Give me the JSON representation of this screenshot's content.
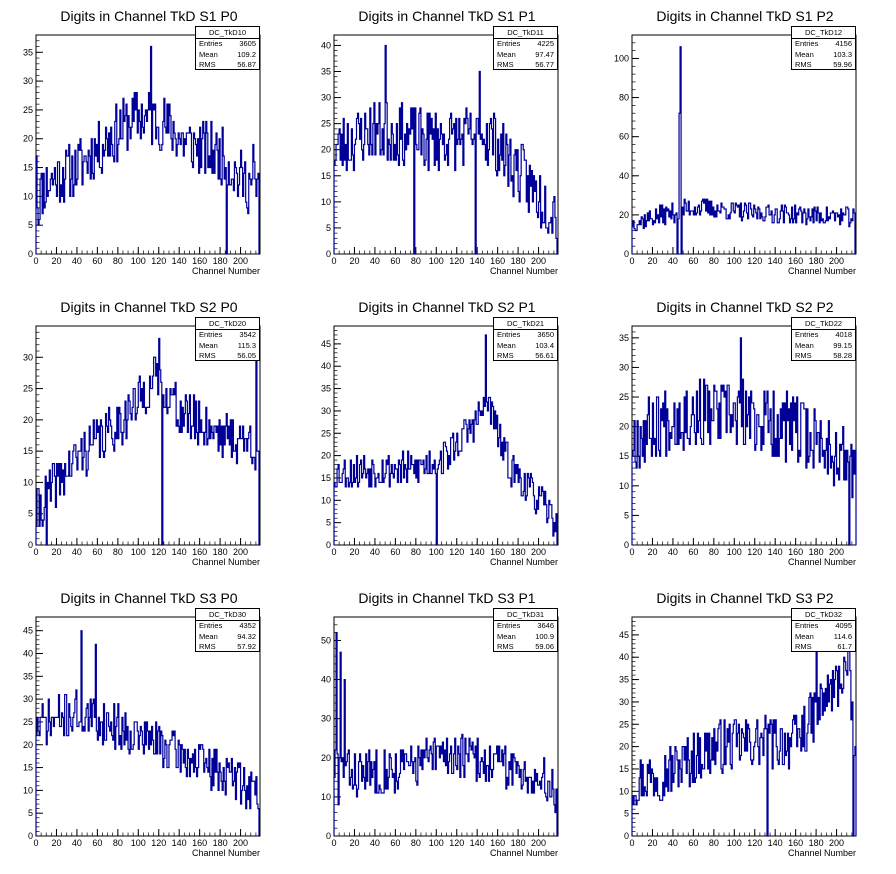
{
  "chart_data": [
    {
      "type": "bar",
      "title": "Digits in Channel TkD S1 P0",
      "stats_name": "DC_TkD10",
      "stats": {
        "entries_label": "Entries",
        "entries": "3605",
        "mean_label": "Mean",
        "mean": "109.2",
        "rms_label": "RMS",
        "rms": "56.87"
      },
      "xlabel": "Channel Number",
      "xlim": [
        0,
        219
      ],
      "ylim": [
        0,
        38
      ],
      "yticks": [
        0,
        5,
        10,
        15,
        20,
        25,
        30,
        35
      ],
      "xticks": [
        0,
        20,
        40,
        60,
        80,
        100,
        120,
        140,
        160,
        180,
        200
      ],
      "color": "#000099",
      "seed": 11,
      "profile": [
        [
          0,
          10
        ],
        [
          15,
          13
        ],
        [
          40,
          15
        ],
        [
          70,
          20
        ],
        [
          100,
          24
        ],
        [
          120,
          23
        ],
        [
          150,
          19
        ],
        [
          180,
          17
        ],
        [
          200,
          13
        ],
        [
          218,
          11
        ]
      ],
      "noise": 5,
      "spikes": [
        [
          0,
          17
        ],
        [
          2,
          5
        ],
        [
          112,
          36
        ],
        [
          186,
          0
        ],
        [
          212,
          19
        ],
        [
          218,
          0
        ]
      ]
    },
    {
      "type": "bar",
      "title": "Digits in Channel TkD S1 P1",
      "stats_name": "DC_TkD11",
      "stats": {
        "entries_label": "Entries",
        "entries": "4225",
        "mean_label": "Mean",
        "mean": "97.47",
        "rms_label": "RMS",
        "rms": "56.77"
      },
      "xlabel": "Channel Number",
      "xlim": [
        0,
        219
      ],
      "ylim": [
        0,
        42
      ],
      "yticks": [
        0,
        5,
        10,
        15,
        20,
        25,
        30,
        35,
        40
      ],
      "xticks": [
        0,
        20,
        40,
        60,
        80,
        100,
        120,
        140,
        160,
        180,
        200
      ],
      "color": "#000099",
      "seed": 23,
      "profile": [
        [
          0,
          20
        ],
        [
          40,
          24
        ],
        [
          80,
          22
        ],
        [
          120,
          22
        ],
        [
          150,
          23
        ],
        [
          180,
          16
        ],
        [
          200,
          11
        ],
        [
          218,
          8
        ]
      ],
      "noise": 6,
      "spikes": [
        [
          50,
          40
        ],
        [
          78,
          0
        ],
        [
          138,
          0
        ],
        [
          142,
          35
        ],
        [
          218,
          0
        ]
      ]
    },
    {
      "type": "bar",
      "title": "Digits in Channel TkD S1 P2",
      "stats_name": "DC_TkD12",
      "stats": {
        "entries_label": "Entries",
        "entries": "4156",
        "mean_label": "Mean",
        "mean": "103.3",
        "rms_label": "RMS",
        "rms": "59.96"
      },
      "xlabel": "Channel Number",
      "xlim": [
        0,
        219
      ],
      "ylim": [
        0,
        112
      ],
      "yticks": [
        0,
        20,
        40,
        60,
        80,
        100
      ],
      "xticks": [
        0,
        20,
        40,
        60,
        80,
        100,
        120,
        140,
        160,
        180,
        200
      ],
      "color": "#000099",
      "seed": 37,
      "profile": [
        [
          0,
          16
        ],
        [
          30,
          20
        ],
        [
          60,
          24
        ],
        [
          120,
          21
        ],
        [
          218,
          19
        ]
      ],
      "noise": 5,
      "spikes": [
        [
          44,
          0
        ],
        [
          46,
          72
        ],
        [
          47,
          106
        ],
        [
          48,
          0
        ],
        [
          218,
          0
        ]
      ]
    },
    {
      "type": "bar",
      "title": "Digits in Channel TkD S2 P0",
      "stats_name": "DC_TkD20",
      "stats": {
        "entries_label": "Entries",
        "entries": "3542",
        "mean_label": "Mean",
        "mean": "115.3",
        "rms_label": "RMS",
        "rms": "56.05"
      },
      "xlabel": "Channel Number",
      "xlim": [
        0,
        219
      ],
      "ylim": [
        0,
        35
      ],
      "yticks": [
        0,
        5,
        10,
        15,
        20,
        25,
        30
      ],
      "xticks": [
        0,
        20,
        40,
        60,
        80,
        100,
        120,
        140,
        160,
        180,
        200
      ],
      "color": "#000099",
      "seed": 41,
      "profile": [
        [
          0,
          5
        ],
        [
          20,
          10
        ],
        [
          40,
          14
        ],
        [
          70,
          18
        ],
        [
          100,
          23
        ],
        [
          120,
          27
        ],
        [
          140,
          21
        ],
        [
          180,
          18
        ],
        [
          210,
          16
        ],
        [
          218,
          15
        ]
      ],
      "noise": 4,
      "spikes": [
        [
          10,
          0
        ],
        [
          120,
          33
        ],
        [
          123,
          0
        ],
        [
          215,
          30
        ],
        [
          218,
          0
        ]
      ]
    },
    {
      "type": "bar",
      "title": "Digits in Channel TkD S2 P1",
      "stats_name": "DC_TkD21",
      "stats": {
        "entries_label": "Entries",
        "entries": "3650",
        "mean_label": "Mean",
        "mean": "103.4",
        "rms_label": "RMS",
        "rms": "56.61"
      },
      "xlabel": "Channel Number",
      "xlim": [
        0,
        219
      ],
      "ylim": [
        0,
        49
      ],
      "yticks": [
        0,
        5,
        10,
        15,
        20,
        25,
        30,
        35,
        40,
        45
      ],
      "xticks": [
        0,
        20,
        40,
        60,
        80,
        100,
        120,
        140,
        160,
        180,
        200
      ],
      "color": "#000099",
      "seed": 53,
      "profile": [
        [
          0,
          16
        ],
        [
          40,
          17
        ],
        [
          80,
          17
        ],
        [
          110,
          20
        ],
        [
          140,
          28
        ],
        [
          150,
          32
        ],
        [
          170,
          18
        ],
        [
          200,
          10
        ],
        [
          218,
          5
        ]
      ],
      "noise": 4,
      "spikes": [
        [
          100,
          0
        ],
        [
          148,
          47
        ],
        [
          218,
          0
        ]
      ]
    },
    {
      "type": "bar",
      "title": "Digits in Channel TkD S2 P2",
      "stats_name": "DC_TkD22",
      "stats": {
        "entries_label": "Entries",
        "entries": "4018",
        "mean_label": "Mean",
        "mean": "99.15",
        "rms_label": "RMS",
        "rms": "58.28"
      },
      "xlabel": "Channel Number",
      "xlim": [
        0,
        219
      ],
      "ylim": [
        0,
        37
      ],
      "yticks": [
        0,
        5,
        10,
        15,
        20,
        25,
        30,
        35
      ],
      "xticks": [
        0,
        20,
        40,
        60,
        80,
        100,
        120,
        140,
        160,
        180,
        200
      ],
      "color": "#000099",
      "seed": 67,
      "profile": [
        [
          0,
          18
        ],
        [
          40,
          22
        ],
        [
          100,
          22
        ],
        [
          150,
          20
        ],
        [
          190,
          17
        ],
        [
          218,
          13
        ]
      ],
      "noise": 6,
      "spikes": [
        [
          106,
          35
        ],
        [
          212,
          0
        ]
      ]
    },
    {
      "type": "bar",
      "title": "Digits in Channel TkD S3 P0",
      "stats_name": "DC_TkD30",
      "stats": {
        "entries_label": "Entries",
        "entries": "4352",
        "mean_label": "Mean",
        "mean": "94.32",
        "rms_label": "RMS",
        "rms": "57.92"
      },
      "xlabel": "Channel Number",
      "xlim": [
        0,
        219
      ],
      "ylim": [
        0,
        48
      ],
      "yticks": [
        0,
        5,
        10,
        15,
        20,
        25,
        30,
        35,
        40,
        45
      ],
      "xticks": [
        0,
        20,
        40,
        60,
        80,
        100,
        120,
        140,
        160,
        180,
        200
      ],
      "color": "#000099",
      "seed": 71,
      "profile": [
        [
          0,
          24
        ],
        [
          40,
          27
        ],
        [
          80,
          24
        ],
        [
          120,
          20
        ],
        [
          160,
          16
        ],
        [
          200,
          12
        ],
        [
          218,
          9
        ]
      ],
      "noise": 5,
      "spikes": [
        [
          44,
          45
        ],
        [
          58,
          42
        ],
        [
          218,
          0
        ]
      ]
    },
    {
      "type": "bar",
      "title": "Digits in Channel TkD S3 P1",
      "stats_name": "DC_TkD31",
      "stats": {
        "entries_label": "Entries",
        "entries": "3646",
        "mean_label": "Mean",
        "mean": "100.9",
        "rms_label": "RMS",
        "rms": "59.06"
      },
      "xlabel": "Channel Number",
      "xlim": [
        0,
        219
      ],
      "ylim": [
        0,
        56
      ],
      "yticks": [
        0,
        10,
        20,
        30,
        40,
        50
      ],
      "xticks": [
        0,
        20,
        40,
        60,
        80,
        100,
        120,
        140,
        160,
        180,
        200
      ],
      "color": "#000099",
      "seed": 83,
      "profile": [
        [
          0,
          18
        ],
        [
          20,
          16
        ],
        [
          60,
          17
        ],
        [
          110,
          21
        ],
        [
          150,
          19
        ],
        [
          190,
          16
        ],
        [
          218,
          12
        ]
      ],
      "noise": 6,
      "spikes": [
        [
          2,
          52
        ],
        [
          4,
          8
        ],
        [
          6,
          47
        ],
        [
          10,
          40
        ],
        [
          218,
          0
        ]
      ]
    },
    {
      "type": "bar",
      "title": "Digits in Channel TkD S3 P2",
      "stats_name": "DC_TkD32",
      "stats": {
        "entries_label": "Entries",
        "entries": "4095",
        "mean_label": "Mean",
        "mean": "114.6",
        "rms_label": "RMS",
        "rms": "61.7"
      },
      "xlabel": "Channel Number",
      "xlim": [
        0,
        219
      ],
      "ylim": [
        0,
        49
      ],
      "yticks": [
        0,
        5,
        10,
        15,
        20,
        25,
        30,
        35,
        40,
        45
      ],
      "xticks": [
        0,
        20,
        40,
        60,
        80,
        100,
        120,
        140,
        160,
        180,
        200
      ],
      "color": "#000099",
      "seed": 97,
      "profile": [
        [
          0,
          12
        ],
        [
          40,
          15
        ],
        [
          80,
          20
        ],
        [
          120,
          21
        ],
        [
          160,
          21
        ],
        [
          180,
          28
        ],
        [
          200,
          34
        ],
        [
          210,
          38
        ],
        [
          218,
          20
        ]
      ],
      "noise": 6,
      "spikes": [
        [
          132,
          0
        ],
        [
          180,
          44
        ],
        [
          212,
          47
        ],
        [
          216,
          0
        ]
      ]
    }
  ]
}
